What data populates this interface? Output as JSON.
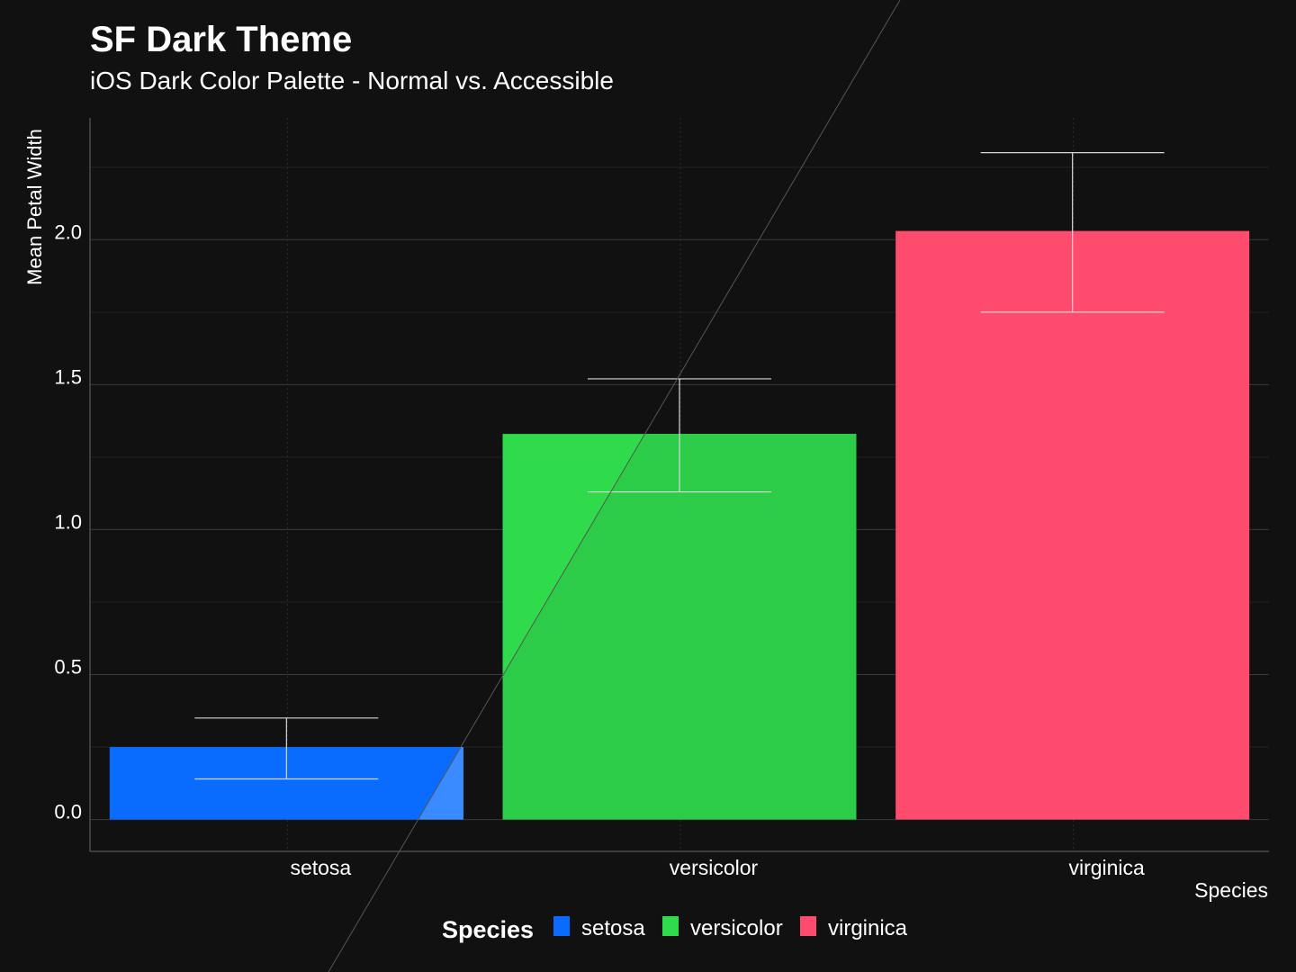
{
  "colors": {
    "background": "#111111",
    "grid_major": "#3a3a3a",
    "grid_minor": "#222222",
    "axis": "#666666",
    "text": "#ffffff",
    "error_bar": "#d8d8d8",
    "series": {
      "setosa": "#0A6CFF",
      "versicolor": "#30DB4B",
      "virginica": "#FF4B6E"
    },
    "accessible_overlay": {
      "setosa": "#3A8BFF",
      "versicolor": "#2DCC48"
    }
  },
  "chart_data": {
    "type": "bar",
    "title": "SF Dark Theme",
    "subtitle": "iOS Dark Color Palette - Normal vs. Accessible",
    "xlabel": "Species",
    "ylabel": "Mean Petal Width",
    "categories": [
      "setosa",
      "versicolor",
      "virginica"
    ],
    "values": [
      0.25,
      1.33,
      2.03
    ],
    "error_low": [
      0.14,
      1.13,
      1.75
    ],
    "error_high": [
      0.35,
      1.52,
      2.3
    ],
    "yticks": [
      "0.0",
      "0.5",
      "1.0",
      "1.5",
      "2.0"
    ],
    "ylim": [
      -0.11,
      2.42
    ],
    "grid": true,
    "legend": {
      "title": "Species",
      "position": "bottom",
      "items": [
        "setosa",
        "versicolor",
        "virginica"
      ]
    }
  }
}
